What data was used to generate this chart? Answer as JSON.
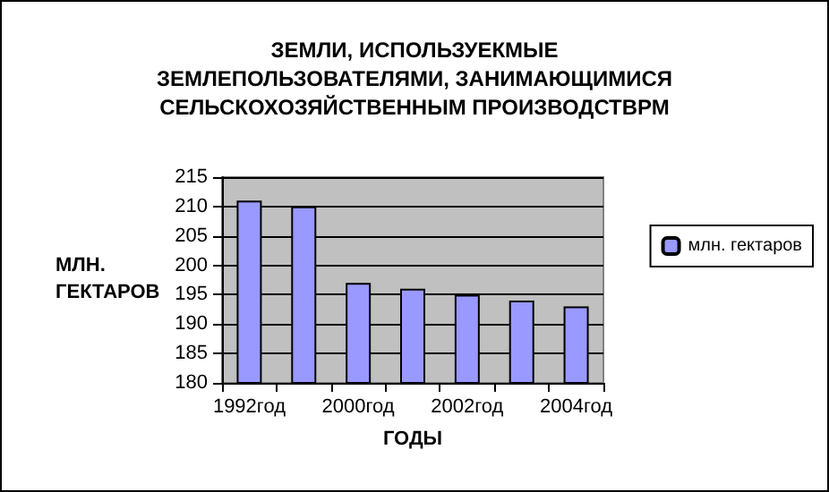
{
  "chart_data": {
    "type": "bar",
    "title": "ЗЕМЛИ, ИСПОЛЬЗУЕКМЫЕ\nЗЕМЛЕПОЛЬЗОВАТЕЛЯМИ, ЗАНИМАЮЩИМИСЯ\nСЕЛЬСКОХОЗЯЙСТВЕННЫМ ПРОИЗВОДСТВРМ",
    "xlabel": "ГОДЫ",
    "ylabel": "МЛН.\nГЕКТАРОВ",
    "categories": [
      "1992год",
      null,
      "2000год",
      null,
      "2002год",
      null,
      "2004год"
    ],
    "series": [
      {
        "name": "млн. гектаров",
        "color": "#9999ff",
        "values": [
          211,
          210,
          197,
          196,
          195,
          194,
          193
        ]
      }
    ],
    "ylim": [
      180,
      215
    ],
    "yticks": [
      180,
      185,
      190,
      195,
      200,
      205,
      210,
      215
    ],
    "grid": "y",
    "legend": "right"
  }
}
